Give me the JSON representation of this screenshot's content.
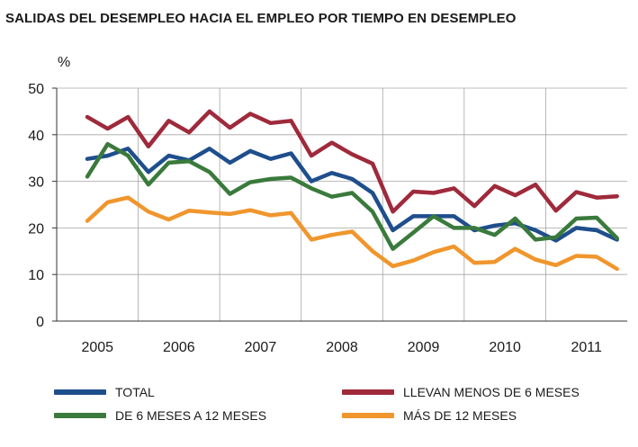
{
  "chart_data": {
    "type": "line",
    "title": "SALIDAS DEL DESEMPLEO HACIA EL EMPLEO POR TIEMPO EN DESEMPLEO",
    "ylabel": "%",
    "xlabel": "",
    "ylim": [
      0,
      50
    ],
    "yticks": [
      0,
      10,
      20,
      30,
      40,
      50
    ],
    "xlim": [
      2004.5,
      2011.5
    ],
    "x_labels": [
      "2005",
      "2006",
      "2007",
      "2008",
      "2009",
      "2010",
      "2011"
    ],
    "x": [
      2004.875,
      2005.125,
      2005.375,
      2005.625,
      2005.875,
      2006.125,
      2006.375,
      2006.625,
      2006.875,
      2007.125,
      2007.375,
      2007.625,
      2007.875,
      2008.125,
      2008.375,
      2008.625,
      2008.875,
      2009.125,
      2009.375,
      2009.625,
      2009.875,
      2010.125,
      2010.375,
      2010.625,
      2010.875,
      2011.125,
      2011.375
    ],
    "grid": true,
    "series": [
      {
        "name": "TOTAL",
        "color": "#1f4e8c",
        "values": [
          34.8,
          35.5,
          37.0,
          32.0,
          35.5,
          34.5,
          37.0,
          34.0,
          36.5,
          34.8,
          36.0,
          30.0,
          31.8,
          30.5,
          27.5,
          19.5,
          22.5,
          22.5,
          22.5,
          19.5,
          20.5,
          21.0,
          19.5,
          17.3,
          20.0,
          19.5,
          17.5
        ]
      },
      {
        "name": "LLEVAN MENOS DE 6 MESES",
        "color": "#9e2a3b",
        "values": [
          43.8,
          41.3,
          43.8,
          37.5,
          43.0,
          40.5,
          45.0,
          41.5,
          44.5,
          42.5,
          43.0,
          35.5,
          38.3,
          35.8,
          33.8,
          23.5,
          27.8,
          27.5,
          28.5,
          24.7,
          29.0,
          27.0,
          29.3,
          23.7,
          27.7,
          26.5,
          26.8
        ]
      },
      {
        "name": "DE 6 MESES A 12 MESES",
        "color": "#3a7a3c",
        "values": [
          31.0,
          38.0,
          35.5,
          29.3,
          34.0,
          34.3,
          32.0,
          27.3,
          29.8,
          30.5,
          30.8,
          28.5,
          26.7,
          27.5,
          23.5,
          15.5,
          19.0,
          22.5,
          20.0,
          20.0,
          18.5,
          22.0,
          17.5,
          18.0,
          22.0,
          22.2,
          17.8
        ]
      },
      {
        "name": "MÁS DE 12 MESES",
        "color": "#f0962d",
        "values": [
          21.5,
          25.5,
          26.5,
          23.5,
          21.8,
          23.7,
          23.3,
          23.0,
          23.8,
          22.7,
          23.2,
          17.5,
          18.5,
          19.2,
          15.0,
          11.8,
          13.0,
          14.8,
          16.0,
          12.5,
          12.7,
          15.5,
          13.2,
          12.0,
          14.0,
          13.8,
          11.2
        ]
      }
    ],
    "legend": {
      "placement": "bottom",
      "entries": [
        "TOTAL",
        "LLEVAN MENOS DE 6 MESES",
        "DE 6 MESES A 12 MESES",
        "MÁS DE 12 MESES"
      ]
    }
  }
}
